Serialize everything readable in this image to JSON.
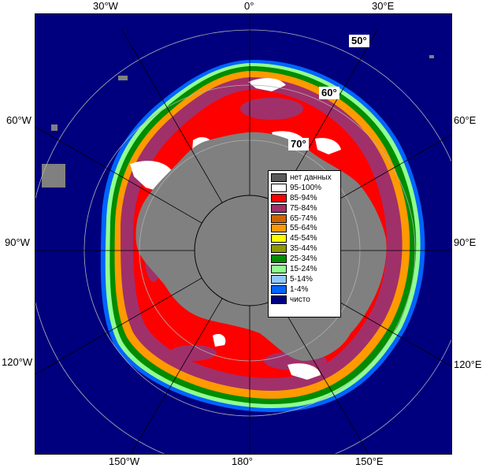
{
  "map": {
    "longitude_labels": {
      "top_left": "30°W",
      "top_center": "0°",
      "top_right": "30°E",
      "left_upper": "60°W",
      "left_middle": "90°W",
      "left_lower": "120°W",
      "right_upper": "60°E",
      "right_middle": "90°E",
      "right_lower": "120°E",
      "bottom_left": "150°W",
      "bottom_center": "180°",
      "bottom_right": "150°E"
    },
    "latitude_labels": {
      "lat50": "50°",
      "lat60": "60°",
      "lat70": "70°"
    },
    "colors": {
      "ocean_open": "#00007f",
      "no_data": "#808080",
      "ice_95_100": "#ffffff",
      "ice_85_94": "#ff0000",
      "ice_75_84": "#a0306a",
      "ice_65_74": "#d06400",
      "ice_55_64": "#ff9a00",
      "ice_45_54": "#ffff00",
      "ice_35_44": "#8c9a00",
      "ice_25_34": "#008c00",
      "ice_15_24": "#90ff90",
      "ice_5_14": "#90c8ff",
      "ice_1_4": "#0064ff",
      "grid": "#b0b0b0"
    }
  },
  "legend": {
    "items": [
      {
        "label": "нет данных",
        "color": "#5a5a5a"
      },
      {
        "label": "95-100%",
        "color": "#ffffff"
      },
      {
        "label": "85-94%",
        "color": "#ff0000"
      },
      {
        "label": "75-84%",
        "color": "#a0306a"
      },
      {
        "label": "65-74%",
        "color": "#d06400"
      },
      {
        "label": "55-64%",
        "color": "#ff9a00"
      },
      {
        "label": "45-54%",
        "color": "#ffff00"
      },
      {
        "label": "35-44%",
        "color": "#8c9a00"
      },
      {
        "label": "25-34%",
        "color": "#008c00"
      },
      {
        "label": "15-24%",
        "color": "#90ff90"
      },
      {
        "label": "5-14%",
        "color": "#90c8ff"
      },
      {
        "label": "1-4%",
        "color": "#0064ff"
      },
      {
        "label": "чисто",
        "color": "#00007f"
      }
    ]
  }
}
